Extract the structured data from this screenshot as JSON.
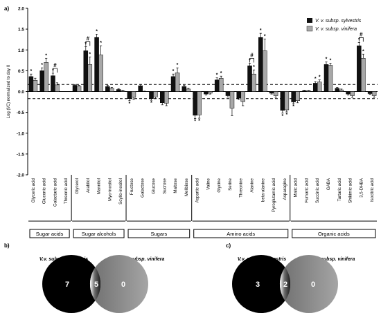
{
  "panel_labels": {
    "a": "a)",
    "b": "b)",
    "c": "c)"
  },
  "chart_data": {
    "type": "bar",
    "ylabel": "Log (f/C) normalized to day 0",
    "ylim": [
      -2.0,
      2.0
    ],
    "yticks": [
      "2.0",
      "1.5",
      "1.0",
      "0.5",
      "0.0",
      "-0.5",
      "-1.0",
      "-1.5",
      "-2.0"
    ],
    "threshold_lines": [
      0.17,
      -0.17
    ],
    "categories": [
      "Glyceric acid",
      "Gluconic acid",
      "Galactaric acid",
      "Threonic acid",
      "Glycerol",
      "Arabitol",
      "Mannitol",
      "Myo-inositol",
      "Scyllo-inositol",
      "Fructose",
      "Galactose",
      "Glucose",
      "Sucrose",
      "Maltose",
      "Melibiose",
      "Aspartic acid",
      "Valine",
      "Glycine",
      "Serine",
      "Threonine",
      "Alanine",
      "beta-alanine",
      "Pyroglutamic acid",
      "Asparagine",
      "Malic acid",
      "Fumaric acid",
      "Succinic acid",
      "GABA",
      "Tartaric acid",
      "Shikimic acid",
      "3,5-DHBA",
      "Isocitric acid"
    ],
    "series": [
      {
        "name": "V. v. subsp. sylvestris",
        "color": "#111111",
        "values": [
          0.36,
          0.5,
          0.38,
          0.0,
          0.15,
          0.98,
          1.3,
          0.12,
          0.05,
          -0.17,
          0.14,
          -0.17,
          -0.27,
          0.36,
          0.12,
          -0.57,
          -0.06,
          0.28,
          -0.1,
          -0.16,
          0.62,
          1.3,
          -0.04,
          -0.45,
          -0.25,
          0.02,
          0.2,
          0.65,
          0.08,
          -0.06,
          1.1,
          -0.05
        ],
        "errors": [
          0.06,
          0.07,
          0.06,
          0.0,
          0.02,
          0.1,
          0.08,
          0.03,
          0.02,
          0.05,
          0.03,
          0.04,
          0.05,
          0.06,
          0.03,
          0.08,
          0.02,
          0.05,
          0.03,
          0.03,
          0.06,
          0.1,
          0.02,
          0.07,
          0.04,
          0.01,
          0.04,
          0.06,
          0.02,
          0.02,
          0.08,
          0.02
        ]
      },
      {
        "name": "V. v. subsp. vinifera",
        "color": "#a8a8a8",
        "values": [
          0.27,
          0.7,
          0.16,
          0.0,
          0.13,
          0.65,
          0.88,
          0.08,
          0.02,
          -0.14,
          0.0,
          -0.13,
          -0.28,
          0.45,
          0.06,
          -0.56,
          -0.04,
          0.32,
          -0.4,
          -0.24,
          0.42,
          0.98,
          -0.1,
          -0.44,
          -0.22,
          0.02,
          0.23,
          0.63,
          0.04,
          -0.1,
          0.8,
          -0.1
        ],
        "errors": [
          0.05,
          0.1,
          0.05,
          0.0,
          0.02,
          0.18,
          0.22,
          0.02,
          0.01,
          0.05,
          0.01,
          0.04,
          0.06,
          0.12,
          0.02,
          0.08,
          0.02,
          0.05,
          0.18,
          0.1,
          0.1,
          0.28,
          0.04,
          0.05,
          0.05,
          0.01,
          0.05,
          0.05,
          0.02,
          0.04,
          0.1,
          0.04
        ]
      }
    ],
    "significance": {
      "sylvestris": [
        0,
        1,
        2,
        5,
        6,
        9,
        11,
        13,
        15,
        17,
        20,
        21,
        23,
        24,
        26,
        27,
        30
      ],
      "vinifera": [
        1,
        5,
        6,
        13,
        15,
        17,
        20,
        21,
        23,
        26,
        27,
        30
      ]
    },
    "hash_marks": [
      2,
      5,
      20,
      30
    ],
    "groups": [
      {
        "label": "Sugar acids",
        "start": 0,
        "end": 3
      },
      {
        "label": "Sugar alcohols",
        "start": 4,
        "end": 8
      },
      {
        "label": "Sugars",
        "start": 9,
        "end": 14
      },
      {
        "label": "Amino acids",
        "start": 15,
        "end": 23
      },
      {
        "label": "Organic acids",
        "start": 24,
        "end": 31
      }
    ],
    "symbols": {
      "star": "*",
      "hash": "#"
    }
  },
  "venns": [
    {
      "panel": "b",
      "left_title": "V.v. subsp. sylvestris",
      "right_title": "V. v. subsp. vinifera",
      "left_only": "7",
      "overlap": "5",
      "right_only": "0"
    },
    {
      "panel": "c",
      "left_title": "V.v. subsp. sylvestris",
      "right_title": "V. v. subsp. vinifera",
      "left_only": "3",
      "overlap": "2",
      "right_only": "0"
    }
  ]
}
